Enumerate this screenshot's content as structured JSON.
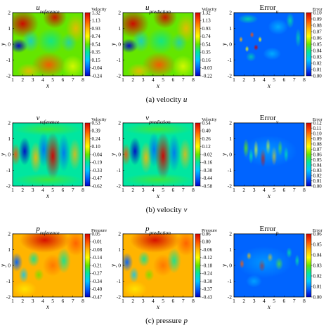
{
  "colormap": [
    "#0000c8",
    "#0064ff",
    "#00c8ff",
    "#00e6a0",
    "#64e600",
    "#ffff00",
    "#ffb400",
    "#ff5000",
    "#d20000"
  ],
  "panel_bg": "#3a5ccc",
  "chart_data": [
    {
      "type": "heatmap",
      "row": 0,
      "col": 0,
      "title": "u",
      "title_sub": "reference",
      "xlabel": "x",
      "ylabel": "y",
      "xlim": [
        1,
        8
      ],
      "ylim": [
        -2,
        2
      ],
      "xticks": [
        "1",
        "2",
        "3",
        "4",
        "5",
        "6",
        "7",
        "8"
      ],
      "yticks": [
        "2",
        "1",
        "0",
        "-1",
        "-2"
      ],
      "colorbar_label": "Velocity",
      "colorbar_ticks": [
        "1.32",
        "1.13",
        "0.93",
        "0.74",
        "0.54",
        "0.35",
        "0.15",
        "-0.04",
        "-0.24"
      ],
      "field": "u",
      "error": false
    },
    {
      "type": "heatmap",
      "row": 0,
      "col": 1,
      "title": "u",
      "title_sub": "prediction",
      "xlabel": "x",
      "ylabel": "y",
      "xlim": [
        1,
        8
      ],
      "ylim": [
        -2,
        2
      ],
      "xticks": [
        "1",
        "2",
        "3",
        "4",
        "5",
        "6",
        "7",
        "8"
      ],
      "yticks": [
        "2",
        "1",
        "0",
        "-1",
        "-2"
      ],
      "colorbar_label": "Velocity",
      "colorbar_ticks": [
        "1.32",
        "1.13",
        "0.93",
        "0.74",
        "0.54",
        "0.35",
        "0.16",
        "-0.03",
        "-0.22"
      ],
      "field": "u",
      "error": false
    },
    {
      "type": "heatmap",
      "row": 0,
      "col": 2,
      "title": "Error",
      "title_sub": "u",
      "xlabel": "x",
      "ylabel": "y",
      "xlim": [
        1,
        8
      ],
      "ylim": [
        -2,
        2
      ],
      "xticks": [
        "1",
        "2",
        "3",
        "4",
        "5",
        "6",
        "7",
        "8"
      ],
      "yticks": [
        "2",
        "1",
        "0",
        "-1",
        "-2"
      ],
      "colorbar_label": "Error",
      "colorbar_ticks": [
        "0.10",
        "0.09",
        "0.08",
        "0.07",
        "0.06",
        "0.05",
        "0.04",
        "0.03",
        "0.02",
        "0.01",
        "0.00"
      ],
      "field": "eu",
      "error": true
    },
    {
      "type": "heatmap",
      "row": 1,
      "col": 0,
      "title": "v",
      "title_sub": "reference",
      "xlabel": "x",
      "ylabel": "y",
      "xlim": [
        1,
        8
      ],
      "ylim": [
        -2,
        2
      ],
      "xticks": [
        "1",
        "2",
        "3",
        "4",
        "5",
        "6",
        "7",
        "8"
      ],
      "yticks": [
        "2",
        "1",
        "0",
        "-1",
        "-2"
      ],
      "colorbar_label": "Velocity",
      "colorbar_ticks": [
        "0.53",
        "0.39",
        "0.24",
        "0.10",
        "-0.04",
        "-0.19",
        "-0.33",
        "-0.47",
        "-0.62"
      ],
      "field": "v",
      "error": false
    },
    {
      "type": "heatmap",
      "row": 1,
      "col": 1,
      "title": "v",
      "title_sub": "prediction",
      "xlabel": "x",
      "ylabel": "y",
      "xlim": [
        1,
        8
      ],
      "ylim": [
        -2,
        2
      ],
      "xticks": [
        "1",
        "2",
        "3",
        "4",
        "5",
        "6",
        "7",
        "8"
      ],
      "yticks": [
        "2",
        "1",
        "0",
        "-1",
        "-2"
      ],
      "colorbar_label": "Velocity",
      "colorbar_ticks": [
        "0.54",
        "0.40",
        "0.26",
        "0.12",
        "-0.02",
        "-0.16",
        "-0.30",
        "-0.44",
        "-0.58"
      ],
      "field": "v",
      "error": false
    },
    {
      "type": "heatmap",
      "row": 1,
      "col": 2,
      "title": "Error",
      "title_sub": "v",
      "xlabel": "x",
      "ylabel": "y",
      "xlim": [
        1,
        8
      ],
      "ylim": [
        -2,
        2
      ],
      "xticks": [
        "1",
        "2",
        "3",
        "4",
        "5",
        "6",
        "7",
        "8"
      ],
      "yticks": [
        "2",
        "1",
        "0",
        "-1",
        "-2"
      ],
      "colorbar_label": "Error",
      "colorbar_ticks": [
        "0.12",
        "0.11",
        "0.10",
        "0.09",
        "0.08",
        "0.07",
        "0.06",
        "0.05",
        "0.04",
        "0.03",
        "0.02",
        "0.01",
        "0.00"
      ],
      "field": "ev",
      "error": true
    },
    {
      "type": "heatmap",
      "row": 2,
      "col": 0,
      "title": "p",
      "title_sub": "reference",
      "xlabel": "x",
      "ylabel": "y",
      "xlim": [
        1,
        8
      ],
      "ylim": [
        -2,
        2
      ],
      "xticks": [
        "1",
        "2",
        "3",
        "4",
        "5",
        "6",
        "7",
        "8"
      ],
      "yticks": [
        "2",
        "1",
        "0",
        "-1",
        "-2"
      ],
      "colorbar_label": "Pressure",
      "colorbar_ticks": [
        "0.05",
        "-0.01",
        "-0.08",
        "-0.14",
        "-0.21",
        "-0.27",
        "-0.34",
        "-0.40",
        "-0.47"
      ],
      "field": "p",
      "error": false
    },
    {
      "type": "heatmap",
      "row": 2,
      "col": 1,
      "title": "p",
      "title_sub": "prediction",
      "xlabel": "x",
      "ylabel": "y",
      "xlim": [
        1,
        8
      ],
      "ylim": [
        -2,
        2
      ],
      "xticks": [
        "1",
        "2",
        "3",
        "4",
        "5",
        "6",
        "7",
        "8"
      ],
      "yticks": [
        "2",
        "1",
        "0",
        "-1",
        "-2"
      ],
      "colorbar_label": "Pressure",
      "colorbar_ticks": [
        "0.06",
        "0.00",
        "-0.06",
        "-0.12",
        "-0.18",
        "-0.24",
        "-0.30",
        "-0.37",
        "-0.43"
      ],
      "field": "p",
      "error": false
    },
    {
      "type": "heatmap",
      "row": 2,
      "col": 2,
      "title": "Error",
      "title_sub": "p",
      "xlabel": "x",
      "ylabel": "y",
      "xlim": [
        1,
        8
      ],
      "ylim": [
        -2,
        2
      ],
      "xticks": [
        "1",
        "2",
        "3",
        "4",
        "5",
        "6",
        "7",
        "8"
      ],
      "yticks": [
        "2",
        "1",
        "0",
        "-1",
        "-2"
      ],
      "colorbar_label": "Error",
      "colorbar_ticks": [
        "0.06",
        "0.05",
        "0.04",
        "0.03",
        "0.02",
        "0.01",
        "0.00"
      ],
      "field": "ep",
      "error": true
    }
  ],
  "captions": [
    {
      "text": "(a) velocity ",
      "var": "u"
    },
    {
      "text": "(b) velocity ",
      "var": "v"
    },
    {
      "text": "(c) pressure ",
      "var": "p"
    }
  ]
}
